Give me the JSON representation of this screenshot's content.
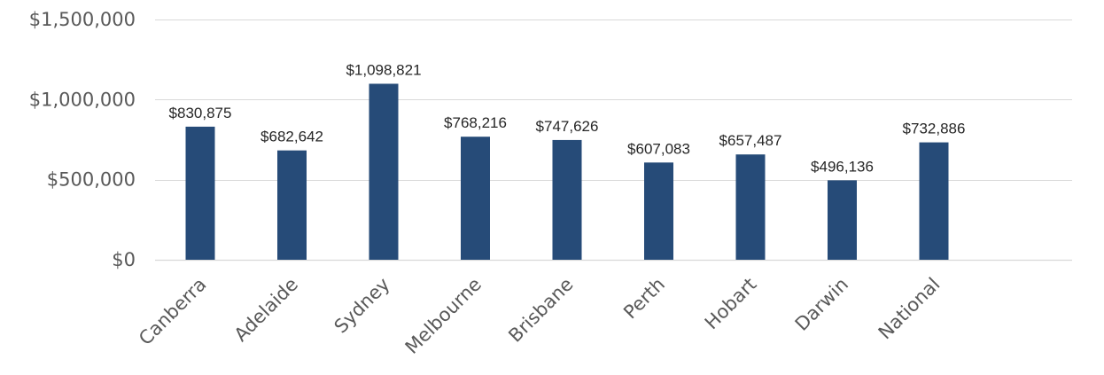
{
  "chart_data": {
    "type": "bar",
    "title": "",
    "xlabel": "",
    "ylabel": "",
    "categories": [
      "Canberra",
      "Adelaide",
      "Sydney",
      "Melbourne",
      "Brisbane",
      "Perth",
      "Hobart",
      "Darwin",
      "National"
    ],
    "values": [
      830875,
      682642,
      1098821,
      768216,
      747626,
      607083,
      657487,
      496136,
      732886
    ],
    "data_labels": [
      "$830,875",
      "$682,642",
      "$1,098,821",
      "$768,216",
      "$747,626",
      "$607,083",
      "$657,487",
      "$496,136",
      "$732,886"
    ],
    "ylim": [
      0,
      1500000
    ],
    "y_ticks": [
      0,
      500000,
      1000000,
      1500000
    ],
    "y_tick_labels": [
      "$0",
      "$500,000",
      "$1,000,000",
      "$1,500,000"
    ],
    "grid": true,
    "legend": "none",
    "bar_color": "#264b78",
    "grid_color": "#d9d9d9",
    "tick_label_color": "#595959",
    "data_label_color": "#262626"
  }
}
